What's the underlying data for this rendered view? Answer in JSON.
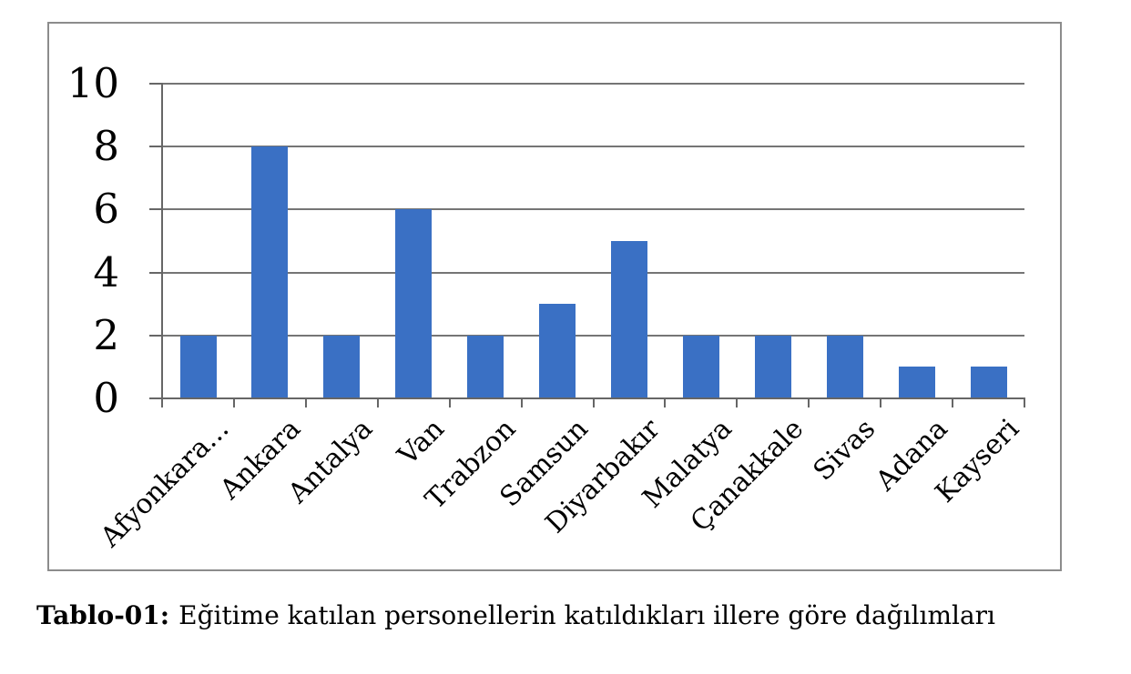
{
  "caption": {
    "label": "Tablo-01:",
    "text": "Eğitime katılan personellerin katıldıkları illere göre dağılımları"
  },
  "chart_data": {
    "type": "bar",
    "categories": [
      "Afyonkara...",
      "Ankara",
      "Antalya",
      "Van",
      "Trabzon",
      "Samsun",
      "Diyarbakır",
      "Malatya",
      "Çanakkale",
      "Sivas",
      "Adana",
      "Kayseri"
    ],
    "values": [
      2,
      8,
      2,
      6,
      2,
      3,
      5,
      2,
      2,
      2,
      1,
      1
    ],
    "title": "",
    "xlabel": "",
    "ylabel": "",
    "ylim": [
      0,
      10
    ],
    "yticks": [
      0,
      2,
      4,
      6,
      8,
      10
    ],
    "grid": true,
    "legend": false,
    "colors": {
      "bar": "#3A70C4",
      "gridline": "#757575",
      "axis": "#666666",
      "frame": "#8C8C8C"
    }
  }
}
